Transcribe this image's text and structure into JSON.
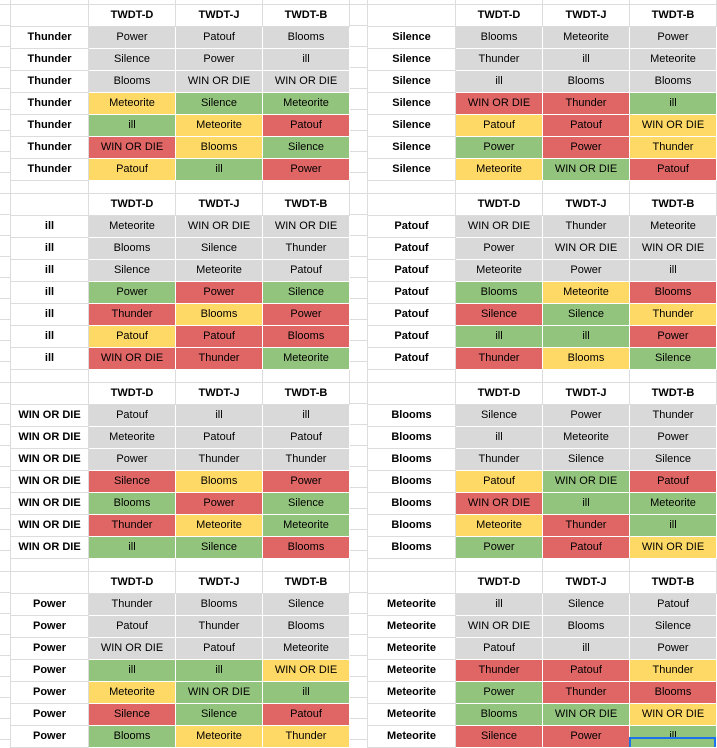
{
  "sheet": {
    "columns": [
      "TWDT-D",
      "TWDT-J",
      "TWDT-B"
    ],
    "colors": {
      "gray": "#d9d9d9",
      "green": "#93c47d",
      "yellow": "#ffd966",
      "red": "#e06666",
      "selection": "#1a73e8"
    },
    "blocks": [
      {
        "label": "Thunder",
        "rows": [
          [
            {
              "t": "Power",
              "c": "gray"
            },
            {
              "t": "Patouf",
              "c": "gray"
            },
            {
              "t": "Blooms",
              "c": "gray"
            }
          ],
          [
            {
              "t": "Silence",
              "c": "gray"
            },
            {
              "t": "Power",
              "c": "gray"
            },
            {
              "t": "ill",
              "c": "gray"
            }
          ],
          [
            {
              "t": "Blooms",
              "c": "gray"
            },
            {
              "t": "WIN OR DIE",
              "c": "gray"
            },
            {
              "t": "WIN OR DIE",
              "c": "gray"
            }
          ],
          [
            {
              "t": "Meteorite",
              "c": "yellow"
            },
            {
              "t": "Silence",
              "c": "green"
            },
            {
              "t": "Meteorite",
              "c": "green"
            }
          ],
          [
            {
              "t": "ill",
              "c": "green"
            },
            {
              "t": "Meteorite",
              "c": "yellow"
            },
            {
              "t": "Patouf",
              "c": "red"
            }
          ],
          [
            {
              "t": "WIN OR DIE",
              "c": "red"
            },
            {
              "t": "Blooms",
              "c": "yellow"
            },
            {
              "t": "Silence",
              "c": "green"
            }
          ],
          [
            {
              "t": "Patouf",
              "c": "yellow"
            },
            {
              "t": "ill",
              "c": "green"
            },
            {
              "t": "Power",
              "c": "red"
            }
          ]
        ]
      },
      {
        "label": "Silence",
        "rows": [
          [
            {
              "t": "Blooms",
              "c": "gray"
            },
            {
              "t": "Meteorite",
              "c": "gray"
            },
            {
              "t": "Power",
              "c": "gray"
            }
          ],
          [
            {
              "t": "Thunder",
              "c": "gray"
            },
            {
              "t": "ill",
              "c": "gray"
            },
            {
              "t": "Meteorite",
              "c": "gray"
            }
          ],
          [
            {
              "t": "ill",
              "c": "gray"
            },
            {
              "t": "Blooms",
              "c": "gray"
            },
            {
              "t": "Blooms",
              "c": "gray"
            }
          ],
          [
            {
              "t": "WIN OR DIE",
              "c": "red"
            },
            {
              "t": "Thunder",
              "c": "red"
            },
            {
              "t": "ill",
              "c": "green"
            }
          ],
          [
            {
              "t": "Patouf",
              "c": "yellow"
            },
            {
              "t": "Patouf",
              "c": "red"
            },
            {
              "t": "WIN OR DIE",
              "c": "yellow"
            }
          ],
          [
            {
              "t": "Power",
              "c": "green"
            },
            {
              "t": "Power",
              "c": "red"
            },
            {
              "t": "Thunder",
              "c": "yellow"
            }
          ],
          [
            {
              "t": "Meteorite",
              "c": "yellow"
            },
            {
              "t": "WIN OR DIE",
              "c": "green"
            },
            {
              "t": "Patouf",
              "c": "red"
            }
          ]
        ]
      },
      {
        "label": "ill",
        "rows": [
          [
            {
              "t": "Meteorite",
              "c": "gray"
            },
            {
              "t": "WIN OR DIE",
              "c": "gray"
            },
            {
              "t": "WIN OR DIE",
              "c": "gray"
            }
          ],
          [
            {
              "t": "Blooms",
              "c": "gray"
            },
            {
              "t": "Silence",
              "c": "gray"
            },
            {
              "t": "Thunder",
              "c": "gray"
            }
          ],
          [
            {
              "t": "Silence",
              "c": "gray"
            },
            {
              "t": "Meteorite",
              "c": "gray"
            },
            {
              "t": "Patouf",
              "c": "gray"
            }
          ],
          [
            {
              "t": "Power",
              "c": "green"
            },
            {
              "t": "Power",
              "c": "red"
            },
            {
              "t": "Silence",
              "c": "green"
            }
          ],
          [
            {
              "t": "Thunder",
              "c": "red"
            },
            {
              "t": "Blooms",
              "c": "yellow"
            },
            {
              "t": "Power",
              "c": "red"
            }
          ],
          [
            {
              "t": "Patouf",
              "c": "yellow"
            },
            {
              "t": "Patouf",
              "c": "red"
            },
            {
              "t": "Blooms",
              "c": "red"
            }
          ],
          [
            {
              "t": "WIN OR DIE",
              "c": "red"
            },
            {
              "t": "Thunder",
              "c": "red"
            },
            {
              "t": "Meteorite",
              "c": "green"
            }
          ]
        ]
      },
      {
        "label": "Patouf",
        "rows": [
          [
            {
              "t": "WIN OR DIE",
              "c": "gray"
            },
            {
              "t": "Thunder",
              "c": "gray"
            },
            {
              "t": "Meteorite",
              "c": "gray"
            }
          ],
          [
            {
              "t": "Power",
              "c": "gray"
            },
            {
              "t": "WIN OR DIE",
              "c": "gray"
            },
            {
              "t": "WIN OR DIE",
              "c": "gray"
            }
          ],
          [
            {
              "t": "Meteorite",
              "c": "gray"
            },
            {
              "t": "Power",
              "c": "gray"
            },
            {
              "t": "ill",
              "c": "gray"
            }
          ],
          [
            {
              "t": "Blooms",
              "c": "green"
            },
            {
              "t": "Meteorite",
              "c": "yellow"
            },
            {
              "t": "Blooms",
              "c": "red"
            }
          ],
          [
            {
              "t": "Silence",
              "c": "red"
            },
            {
              "t": "Silence",
              "c": "green"
            },
            {
              "t": "Thunder",
              "c": "yellow"
            }
          ],
          [
            {
              "t": "ill",
              "c": "green"
            },
            {
              "t": "ill",
              "c": "green"
            },
            {
              "t": "Power",
              "c": "red"
            }
          ],
          [
            {
              "t": "Thunder",
              "c": "red"
            },
            {
              "t": "Blooms",
              "c": "yellow"
            },
            {
              "t": "Silence",
              "c": "green"
            }
          ]
        ]
      },
      {
        "label": "WIN OR DIE",
        "rows": [
          [
            {
              "t": "Patouf",
              "c": "gray"
            },
            {
              "t": "ill",
              "c": "gray"
            },
            {
              "t": "ill",
              "c": "gray"
            }
          ],
          [
            {
              "t": "Meteorite",
              "c": "gray"
            },
            {
              "t": "Patouf",
              "c": "gray"
            },
            {
              "t": "Patouf",
              "c": "gray"
            }
          ],
          [
            {
              "t": "Power",
              "c": "gray"
            },
            {
              "t": "Thunder",
              "c": "gray"
            },
            {
              "t": "Thunder",
              "c": "gray"
            }
          ],
          [
            {
              "t": "Silence",
              "c": "red"
            },
            {
              "t": "Blooms",
              "c": "yellow"
            },
            {
              "t": "Power",
              "c": "red"
            }
          ],
          [
            {
              "t": "Blooms",
              "c": "green"
            },
            {
              "t": "Power",
              "c": "red"
            },
            {
              "t": "Silence",
              "c": "green"
            }
          ],
          [
            {
              "t": "Thunder",
              "c": "red"
            },
            {
              "t": "Meteorite",
              "c": "yellow"
            },
            {
              "t": "Meteorite",
              "c": "green"
            }
          ],
          [
            {
              "t": "ill",
              "c": "green"
            },
            {
              "t": "Silence",
              "c": "green"
            },
            {
              "t": "Blooms",
              "c": "red"
            }
          ]
        ]
      },
      {
        "label": "Blooms",
        "rows": [
          [
            {
              "t": "Silence",
              "c": "gray"
            },
            {
              "t": "Power",
              "c": "gray"
            },
            {
              "t": "Thunder",
              "c": "gray"
            }
          ],
          [
            {
              "t": "ill",
              "c": "gray"
            },
            {
              "t": "Meteorite",
              "c": "gray"
            },
            {
              "t": "Power",
              "c": "gray"
            }
          ],
          [
            {
              "t": "Thunder",
              "c": "gray"
            },
            {
              "t": "Silence",
              "c": "gray"
            },
            {
              "t": "Silence",
              "c": "gray"
            }
          ],
          [
            {
              "t": "Patouf",
              "c": "yellow"
            },
            {
              "t": "WIN OR DIE",
              "c": "green"
            },
            {
              "t": "Patouf",
              "c": "red"
            }
          ],
          [
            {
              "t": "WIN OR DIE",
              "c": "red"
            },
            {
              "t": "ill",
              "c": "green"
            },
            {
              "t": "Meteorite",
              "c": "green"
            }
          ],
          [
            {
              "t": "Meteorite",
              "c": "yellow"
            },
            {
              "t": "Thunder",
              "c": "red"
            },
            {
              "t": "ill",
              "c": "green"
            }
          ],
          [
            {
              "t": "Power",
              "c": "green"
            },
            {
              "t": "Patouf",
              "c": "red"
            },
            {
              "t": "WIN OR DIE",
              "c": "yellow"
            }
          ]
        ]
      },
      {
        "label": "Power",
        "rows": [
          [
            {
              "t": "Thunder",
              "c": "gray"
            },
            {
              "t": "Blooms",
              "c": "gray"
            },
            {
              "t": "Silence",
              "c": "gray"
            }
          ],
          [
            {
              "t": "Patouf",
              "c": "gray"
            },
            {
              "t": "Thunder",
              "c": "gray"
            },
            {
              "t": "Blooms",
              "c": "gray"
            }
          ],
          [
            {
              "t": "WIN OR DIE",
              "c": "gray"
            },
            {
              "t": "Patouf",
              "c": "gray"
            },
            {
              "t": "Meteorite",
              "c": "gray"
            }
          ],
          [
            {
              "t": "ill",
              "c": "green"
            },
            {
              "t": "ill",
              "c": "green"
            },
            {
              "t": "WIN OR DIE",
              "c": "yellow"
            }
          ],
          [
            {
              "t": "Meteorite",
              "c": "yellow"
            },
            {
              "t": "WIN OR DIE",
              "c": "green"
            },
            {
              "t": "ill",
              "c": "green"
            }
          ],
          [
            {
              "t": "Silence",
              "c": "red"
            },
            {
              "t": "Silence",
              "c": "green"
            },
            {
              "t": "Patouf",
              "c": "red"
            }
          ],
          [
            {
              "t": "Blooms",
              "c": "green"
            },
            {
              "t": "Meteorite",
              "c": "yellow"
            },
            {
              "t": "Thunder",
              "c": "yellow"
            }
          ]
        ]
      },
      {
        "label": "Meteorite",
        "rows": [
          [
            {
              "t": "ill",
              "c": "gray"
            },
            {
              "t": "Silence",
              "c": "gray"
            },
            {
              "t": "Patouf",
              "c": "gray"
            }
          ],
          [
            {
              "t": "WIN OR DIE",
              "c": "gray"
            },
            {
              "t": "Blooms",
              "c": "gray"
            },
            {
              "t": "Silence",
              "c": "gray"
            }
          ],
          [
            {
              "t": "Patouf",
              "c": "gray"
            },
            {
              "t": "ill",
              "c": "gray"
            },
            {
              "t": "Power",
              "c": "gray"
            }
          ],
          [
            {
              "t": "Thunder",
              "c": "red"
            },
            {
              "t": "Patouf",
              "c": "red"
            },
            {
              "t": "Thunder",
              "c": "yellow"
            }
          ],
          [
            {
              "t": "Power",
              "c": "green"
            },
            {
              "t": "Thunder",
              "c": "red"
            },
            {
              "t": "Blooms",
              "c": "red"
            }
          ],
          [
            {
              "t": "Blooms",
              "c": "green"
            },
            {
              "t": "WIN OR DIE",
              "c": "green"
            },
            {
              "t": "WIN OR DIE",
              "c": "yellow"
            }
          ],
          [
            {
              "t": "Silence",
              "c": "red"
            },
            {
              "t": "Power",
              "c": "red"
            },
            {
              "t": "ill",
              "c": "green"
            }
          ]
        ]
      }
    ]
  }
}
